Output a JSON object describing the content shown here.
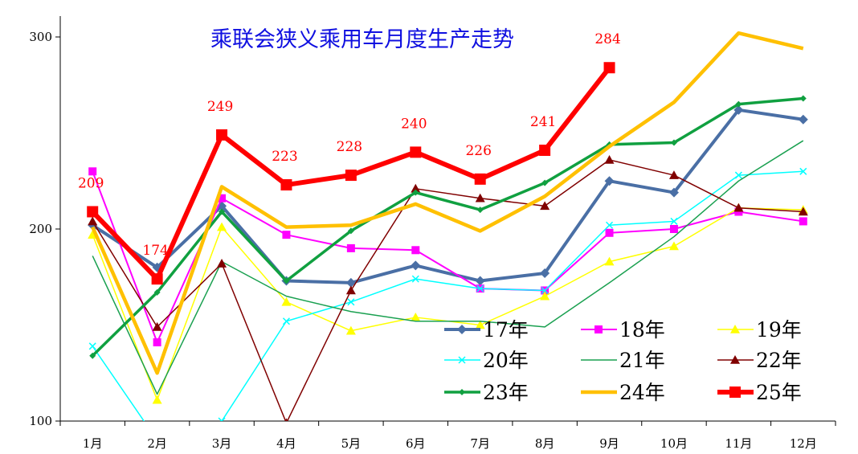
{
  "chart_data": {
    "type": "line",
    "title": "乘联会狭义乘用车月度生产走势",
    "categories": [
      "1月",
      "2月",
      "3月",
      "4月",
      "5月",
      "6月",
      "7月",
      "8月",
      "9月",
      "10月",
      "11月",
      "12月"
    ],
    "ylim": [
      100,
      310
    ],
    "yticks": [
      100,
      200,
      300
    ],
    "grid": false,
    "legend": "bottom-right",
    "series": [
      {
        "name": "17年",
        "color": "#4a6fa5",
        "marker": "diamond",
        "values": [
          202,
          180,
          212,
          173,
          172,
          181,
          173,
          177,
          225,
          219,
          262,
          257
        ]
      },
      {
        "name": "18年",
        "color": "#ff00ff",
        "marker": "square",
        "values": [
          230,
          141,
          216,
          197,
          190,
          189,
          169,
          168,
          198,
          200,
          209,
          204
        ]
      },
      {
        "name": "19年",
        "color": "#ffff00",
        "marker": "triangle",
        "values": [
          197,
          111,
          201,
          162,
          147,
          154,
          150,
          165,
          183,
          191,
          211,
          210
        ]
      },
      {
        "name": "20年",
        "color": "#00ffff",
        "marker": "x",
        "values": [
          139,
          90,
          100,
          152,
          162,
          174,
          169,
          168,
          202,
          204,
          228,
          230
        ]
      },
      {
        "name": "21年",
        "color": "#1aa050",
        "marker": "none",
        "values": [
          186,
          114,
          183,
          165,
          157,
          152,
          152,
          149,
          172,
          196,
          225,
          246
        ]
      },
      {
        "name": "22年",
        "color": "#800000",
        "marker": "triangle",
        "values": [
          204,
          149,
          182,
          99,
          168,
          221,
          216,
          212,
          236,
          228,
          211,
          209
        ]
      },
      {
        "name": "23年",
        "color": "#10a040",
        "marker": "diamond",
        "values": [
          134,
          167,
          209,
          173,
          199,
          219,
          210,
          224,
          244,
          245,
          265,
          268
        ]
      },
      {
        "name": "24年",
        "color": "#ffc000",
        "marker": "none",
        "values": [
          201,
          125,
          222,
          201,
          202,
          213,
          199,
          217,
          243,
          266,
          302,
          294
        ]
      },
      {
        "name": "25年",
        "color": "#ff0000",
        "marker": "square",
        "values": [
          209,
          174,
          249,
          223,
          228,
          240,
          226,
          241,
          284,
          null,
          null,
          null
        ]
      }
    ],
    "data_labels": {
      "series": "25年",
      "values": [
        "209",
        "174",
        "249",
        "223",
        "228",
        "240",
        "226",
        "241",
        "284"
      ]
    }
  }
}
